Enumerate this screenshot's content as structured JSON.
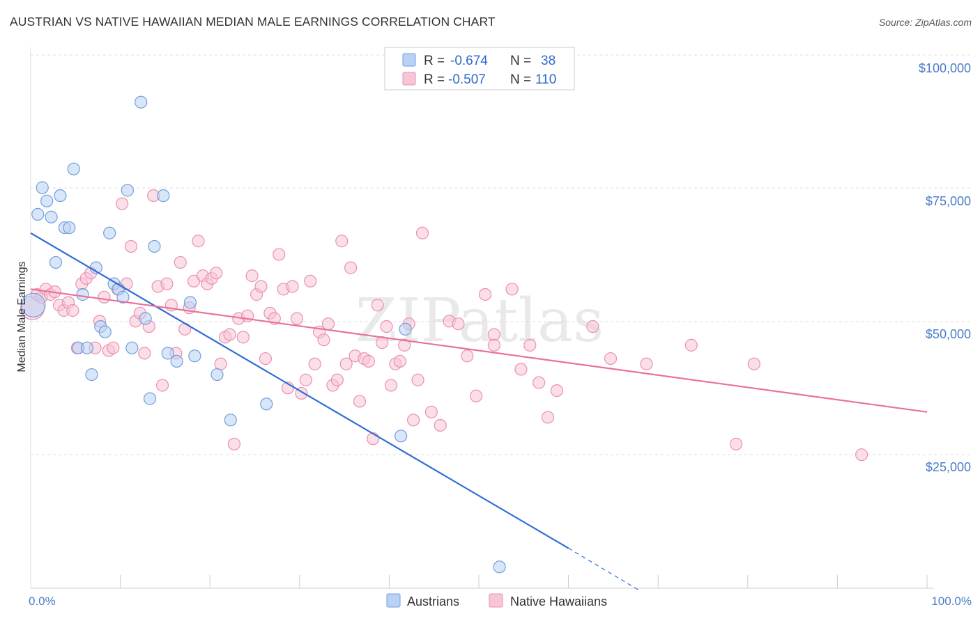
{
  "chart_data": {
    "type": "scatter",
    "title": "AUSTRIAN VS NATIVE HAWAIIAN MEDIAN MALE EARNINGS CORRELATION CHART",
    "source": "Source: ZipAtlas.com",
    "watermark": "ZIPatlas",
    "xlabel": "",
    "ylabel": "Median Male Earnings",
    "xlim": [
      0,
      100
    ],
    "ylim": [
      0,
      104000
    ],
    "x_tick_labels": {
      "left": "0.0%",
      "right": "100.0%"
    },
    "y_ticks": [
      {
        "value": 100000,
        "label": "$100,000"
      },
      {
        "value": 75000,
        "label": "$75,000"
      },
      {
        "value": 50000,
        "label": "$50,000"
      },
      {
        "value": 25000,
        "label": "$25,000"
      }
    ],
    "legend": {
      "rows": [
        {
          "r_label": "R =",
          "r_value": "-0.674",
          "n_label": "N =",
          "n_value": "38"
        },
        {
          "r_label": "R =",
          "r_value": "-0.507",
          "n_label": "N =",
          "n_value": "110"
        }
      ]
    },
    "series": [
      {
        "name": "Austrians",
        "color": "#6e9fe0",
        "fill": "#b9d1f3",
        "line_color": "#2f6fd6",
        "regression": {
          "x_start": 0,
          "y_start": 66500,
          "x_end": 60,
          "y_end": 7500,
          "dash_to_x": 68,
          "dash_to_y": -500
        },
        "points": [
          [
            0.3,
            53000
          ],
          [
            0.8,
            70000
          ],
          [
            1.3,
            75000
          ],
          [
            1.8,
            72500
          ],
          [
            2.3,
            69500
          ],
          [
            2.8,
            61000
          ],
          [
            3.3,
            73500
          ],
          [
            3.8,
            67500
          ],
          [
            4.3,
            67500
          ],
          [
            4.8,
            78500
          ],
          [
            5.3,
            45000
          ],
          [
            5.8,
            55000
          ],
          [
            6.3,
            45000
          ],
          [
            6.8,
            40000
          ],
          [
            7.3,
            60000
          ],
          [
            7.8,
            49000
          ],
          [
            8.3,
            48000
          ],
          [
            8.8,
            66500
          ],
          [
            9.3,
            57000
          ],
          [
            9.8,
            56000
          ],
          [
            10.3,
            54500
          ],
          [
            10.8,
            74500
          ],
          [
            11.3,
            45000
          ],
          [
            12.3,
            91000
          ],
          [
            12.8,
            50500
          ],
          [
            13.3,
            35500
          ],
          [
            13.8,
            64000
          ],
          [
            14.8,
            73500
          ],
          [
            15.3,
            44000
          ],
          [
            16.3,
            42500
          ],
          [
            17.8,
            53500
          ],
          [
            18.3,
            43500
          ],
          [
            20.8,
            40000
          ],
          [
            22.3,
            31500
          ],
          [
            26.3,
            34500
          ],
          [
            41.3,
            28500
          ],
          [
            41.8,
            48500
          ],
          [
            52.3,
            4000
          ]
        ]
      },
      {
        "name": "Native Hawaiians",
        "color": "#ec8fae",
        "fill": "#f6c5d6",
        "line_color": "#e8729a",
        "regression": {
          "x_start": 0,
          "y_start": 56000,
          "x_end": 100,
          "y_end": 33000
        },
        "points": [
          [
            0.2,
            52500
          ],
          [
            0.7,
            55000
          ],
          [
            1.2,
            54500
          ],
          [
            1.7,
            56000
          ],
          [
            2.2,
            55000
          ],
          [
            2.7,
            55500
          ],
          [
            3.2,
            53000
          ],
          [
            3.7,
            52000
          ],
          [
            4.2,
            53500
          ],
          [
            4.7,
            52000
          ],
          [
            5.2,
            45000
          ],
          [
            5.7,
            57000
          ],
          [
            6.2,
            58000
          ],
          [
            6.7,
            59000
          ],
          [
            7.2,
            45000
          ],
          [
            7.7,
            50000
          ],
          [
            8.2,
            54500
          ],
          [
            8.7,
            44500
          ],
          [
            9.2,
            45000
          ],
          [
            9.7,
            56000
          ],
          [
            10.2,
            72000
          ],
          [
            10.7,
            57000
          ],
          [
            11.2,
            64000
          ],
          [
            11.7,
            50000
          ],
          [
            12.2,
            51500
          ],
          [
            12.7,
            44000
          ],
          [
            13.2,
            49000
          ],
          [
            13.7,
            73500
          ],
          [
            14.2,
            56500
          ],
          [
            14.7,
            38000
          ],
          [
            15.2,
            57000
          ],
          [
            15.7,
            53000
          ],
          [
            16.2,
            44000
          ],
          [
            16.7,
            61000
          ],
          [
            17.2,
            48500
          ],
          [
            17.7,
            52500
          ],
          [
            18.2,
            57500
          ],
          [
            18.7,
            65000
          ],
          [
            19.2,
            58500
          ],
          [
            19.7,
            57000
          ],
          [
            20.2,
            58000
          ],
          [
            20.7,
            59000
          ],
          [
            21.2,
            42000
          ],
          [
            21.7,
            47000
          ],
          [
            22.2,
            47500
          ],
          [
            22.7,
            27000
          ],
          [
            23.2,
            50500
          ],
          [
            23.7,
            47000
          ],
          [
            24.2,
            51000
          ],
          [
            24.7,
            58500
          ],
          [
            25.2,
            55000
          ],
          [
            25.7,
            56500
          ],
          [
            26.2,
            43000
          ],
          [
            26.7,
            51500
          ],
          [
            27.2,
            50500
          ],
          [
            27.7,
            62500
          ],
          [
            28.2,
            56000
          ],
          [
            28.7,
            37500
          ],
          [
            29.2,
            56500
          ],
          [
            29.7,
            50500
          ],
          [
            30.2,
            36500
          ],
          [
            30.7,
            39000
          ],
          [
            31.2,
            57500
          ],
          [
            31.7,
            42000
          ],
          [
            32.2,
            48000
          ],
          [
            32.7,
            46500
          ],
          [
            33.2,
            49500
          ],
          [
            33.7,
            38000
          ],
          [
            34.2,
            39000
          ],
          [
            34.7,
            65000
          ],
          [
            35.2,
            42000
          ],
          [
            35.7,
            60000
          ],
          [
            36.2,
            43500
          ],
          [
            36.7,
            35000
          ],
          [
            37.2,
            43000
          ],
          [
            37.7,
            42500
          ],
          [
            38.2,
            28000
          ],
          [
            38.7,
            53000
          ],
          [
            39.2,
            46000
          ],
          [
            39.7,
            49000
          ],
          [
            40.2,
            38000
          ],
          [
            40.7,
            42000
          ],
          [
            41.2,
            42500
          ],
          [
            41.7,
            45500
          ],
          [
            42.2,
            49500
          ],
          [
            42.7,
            31500
          ],
          [
            43.2,
            39000
          ],
          [
            43.7,
            66500
          ],
          [
            44.7,
            33000
          ],
          [
            45.7,
            30500
          ],
          [
            46.7,
            50000
          ],
          [
            47.7,
            49500
          ],
          [
            48.7,
            43500
          ],
          [
            49.7,
            36000
          ],
          [
            50.7,
            55000
          ],
          [
            51.7,
            47500
          ],
          [
            51.7,
            45500
          ],
          [
            53.7,
            56000
          ],
          [
            54.7,
            41000
          ],
          [
            55.7,
            45500
          ],
          [
            56.7,
            38500
          ],
          [
            57.7,
            32000
          ],
          [
            58.7,
            37000
          ],
          [
            62.7,
            49000
          ],
          [
            64.7,
            43000
          ],
          [
            68.7,
            42000
          ],
          [
            73.7,
            45500
          ],
          [
            78.7,
            27000
          ],
          [
            80.7,
            42000
          ],
          [
            92.7,
            25000
          ]
        ]
      }
    ]
  }
}
